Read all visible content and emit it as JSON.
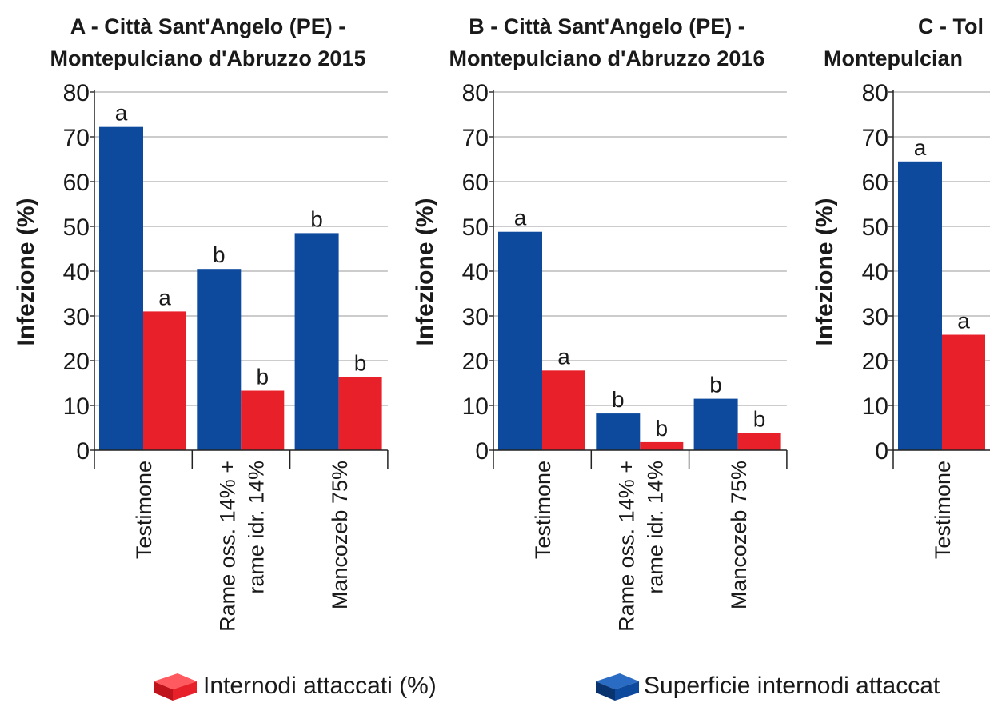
{
  "chart_data": [
    {
      "type": "bar",
      "title": [
        "A - Città Sant'Angelo (PE) -",
        "Montepulciano d'Abruzzo 2015"
      ],
      "ylabel": "Infezione (%)",
      "categories": [
        [
          "Testimone"
        ],
        [
          "Rame oss. 14% +",
          "rame idr. 14%"
        ],
        [
          "Mancozeb 75%"
        ]
      ],
      "series": [
        {
          "name": "Superficie internodi attaccat",
          "color": "#0d4a9e",
          "values": [
            72.2,
            40.5,
            48.5
          ],
          "letters": [
            "a",
            "b",
            "b"
          ]
        },
        {
          "name": "Internodi attaccati (%)",
          "color": "#e8202a",
          "values": [
            31,
            13.3,
            16.3
          ],
          "letters": [
            "a",
            "b",
            "b"
          ]
        }
      ],
      "ylim": [
        0,
        80
      ],
      "yticks": [
        0,
        10,
        20,
        30,
        40,
        50,
        60,
        70,
        80
      ],
      "grid": true
    },
    {
      "type": "bar",
      "title": [
        "B - Città Sant'Angelo (PE) -",
        "Montepulciano d'Abruzzo 2016"
      ],
      "ylabel": "Infezione (%)",
      "categories": [
        [
          "Testimone"
        ],
        [
          "Rame oss. 14% +",
          "rame idr. 14%"
        ],
        [
          "Mancozeb 75%"
        ]
      ],
      "series": [
        {
          "color": "#0d4a9e",
          "values": [
            48.8,
            8.2,
            11.5
          ],
          "letters": [
            "a",
            "b",
            "b"
          ]
        },
        {
          "color": "#e8202a",
          "values": [
            17.8,
            1.8,
            3.8
          ],
          "letters": [
            "a",
            "b",
            "b"
          ]
        }
      ],
      "ylim": [
        0,
        80
      ],
      "yticks": [
        0,
        10,
        20,
        30,
        40,
        50,
        60,
        70,
        80
      ],
      "grid": true
    },
    {
      "type": "bar",
      "title": [
        "C - Tol",
        "Montepulcian"
      ],
      "ylabel": "Infezione (%)",
      "categories": [
        [
          "Testimone"
        ]
      ],
      "series": [
        {
          "color": "#0d4a9e",
          "values": [
            64.5
          ],
          "letters": [
            "a"
          ]
        },
        {
          "color": "#e8202a",
          "values": [
            25.8
          ],
          "letters": [
            "a"
          ]
        }
      ],
      "ylim": [
        0,
        80
      ],
      "yticks": [
        0,
        10,
        20,
        30,
        40,
        50,
        60,
        70,
        80
      ],
      "grid": true
    }
  ]
}
